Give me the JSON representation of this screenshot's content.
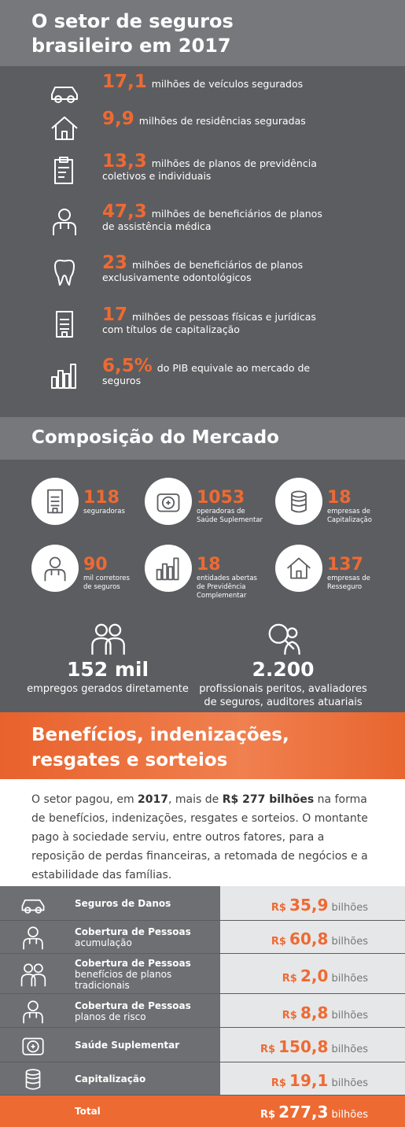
{
  "header": {
    "title": "O setor de seguros brasileiro em 2017"
  },
  "highlights": [
    {
      "number": "17,1",
      "text": "milhões de veículos segurados"
    },
    {
      "number": "9,9",
      "text": "milhões de residências seguradas"
    },
    {
      "number": "13,3",
      "text": "milhões de planos de previdência coletivos e individuais"
    },
    {
      "number": "47,3",
      "text": "milhões de beneficiários de planos de assistência médica"
    },
    {
      "number": "23",
      "text": "milhões de beneficiários de planos exclusivamente odontológicos"
    },
    {
      "number": "17",
      "text": "milhões de pessoas físicas e jurídicas com títulos de capitalização"
    },
    {
      "number": "6,5%",
      "text": "do PIB equivale ao mercado de seguros"
    }
  ],
  "market": {
    "title": "Composição do Mercado",
    "items": [
      {
        "number": "118",
        "label": "seguradoras"
      },
      {
        "number": "1053",
        "label": "operadoras de Saúde Suplementar"
      },
      {
        "number": "18",
        "label": "empresas de Capitalização"
      },
      {
        "number": "90",
        "label": "mil corretores de seguros"
      },
      {
        "number": "18",
        "label": "entidades abertas de Previdência Complementar"
      },
      {
        "number": "137",
        "label": "empresas de Resseguro"
      }
    ],
    "totals": [
      {
        "number": "152 mil",
        "label": "empregos gerados diretamente"
      },
      {
        "number": "2.200",
        "label": "profissionais peritos, avaliadores de seguros, auditores atuariais"
      }
    ]
  },
  "benefits": {
    "title": "Benefícios, indenizações, resgates e sorteios",
    "paragraph": [
      {
        "text": "O setor pagou, em "
      },
      {
        "text": "2017",
        "bold": true
      },
      {
        "text": ", mais de "
      },
      {
        "text": "R$ 277 bilhões",
        "bold": true
      },
      {
        "text": " na forma de benefícios, indenizações, resgates e sorteios. O montante pago à sociedade serviu, entre outros fatores, para a reposição de perdas financeiras, a retomada de negócios e a estabilidade das famílias."
      }
    ],
    "rows": [
      {
        "label": "Seguros de Danos",
        "currency": "R$",
        "amount": "35,9",
        "unit": "bilhões"
      },
      {
        "label": "Cobertura de Pessoas",
        "sublabel": "acumulação",
        "currency": "R$",
        "amount": "60,8",
        "unit": "bilhões"
      },
      {
        "label": "Cobertura de Pessoas",
        "sublabel": "benefícios de planos tradicionais",
        "currency": "R$",
        "amount": "2,0",
        "unit": "bilhões"
      },
      {
        "label": "Cobertura de Pessoas",
        "sublabel": "planos de risco",
        "currency": "R$",
        "amount": "8,8",
        "unit": "bilhões"
      },
      {
        "label": "Saúde Suplementar",
        "currency": "R$",
        "amount": "150,8",
        "unit": "bilhões"
      },
      {
        "label": "Capitalização",
        "currency": "R$",
        "amount": "19,1",
        "unit": "bilhões"
      }
    ],
    "total": {
      "label": "Total",
      "currency": "R$",
      "amount": "277,3",
      "unit": "bilhões"
    }
  }
}
